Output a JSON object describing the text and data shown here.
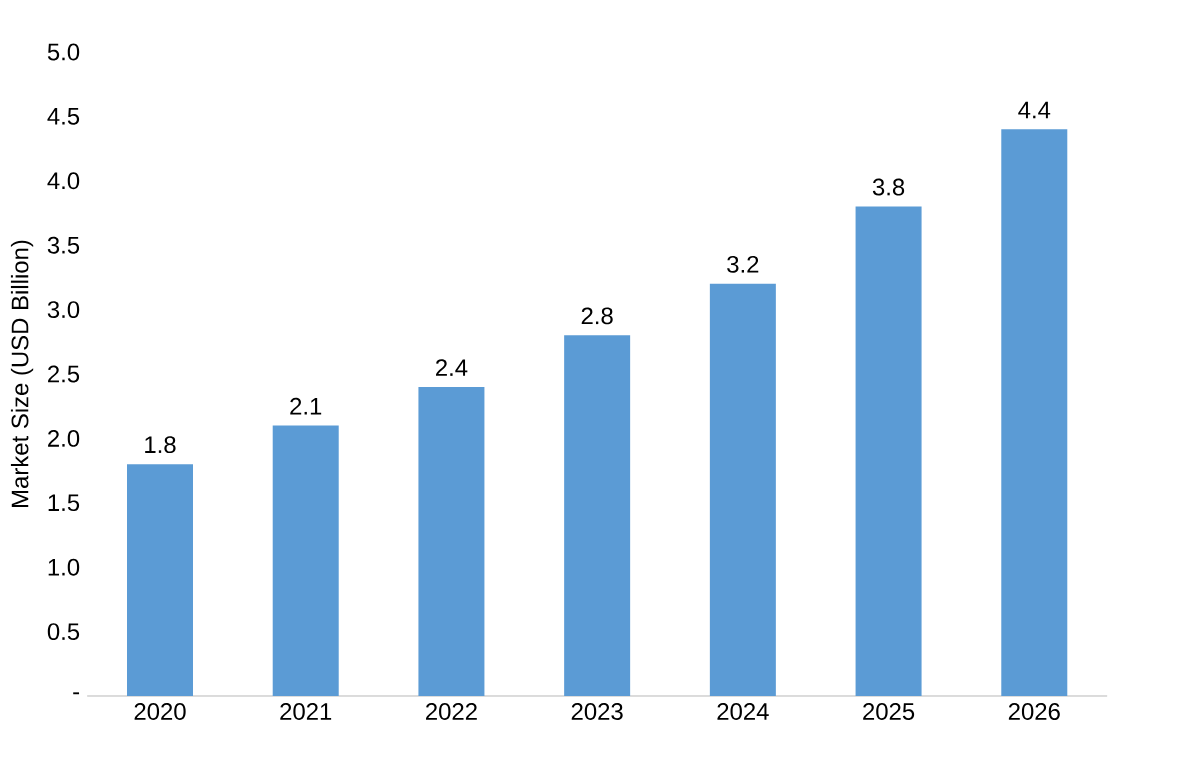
{
  "chart_data": {
    "type": "bar",
    "ylabel": "Market Size (USD Billion)",
    "categories": [
      "2020",
      "2021",
      "2022",
      "2023",
      "2024",
      "2025",
      "2026"
    ],
    "values": [
      1.8,
      2.1,
      2.4,
      2.8,
      3.2,
      3.8,
      4.4
    ],
    "color": "#5b9bd5",
    "data_labels": true,
    "ylim": [
      0,
      5
    ],
    "yticks": [
      {
        "value": 0,
        "label": "-"
      },
      0.5,
      {
        "value": 1,
        "label": "1.0"
      },
      1.5,
      {
        "value": 2,
        "label": "2.0"
      },
      2.5,
      {
        "value": 3,
        "label": "3.0"
      },
      3.5,
      {
        "value": 4,
        "label": "4.0"
      },
      4.5,
      {
        "value": 5,
        "label": "5.0"
      }
    ]
  }
}
